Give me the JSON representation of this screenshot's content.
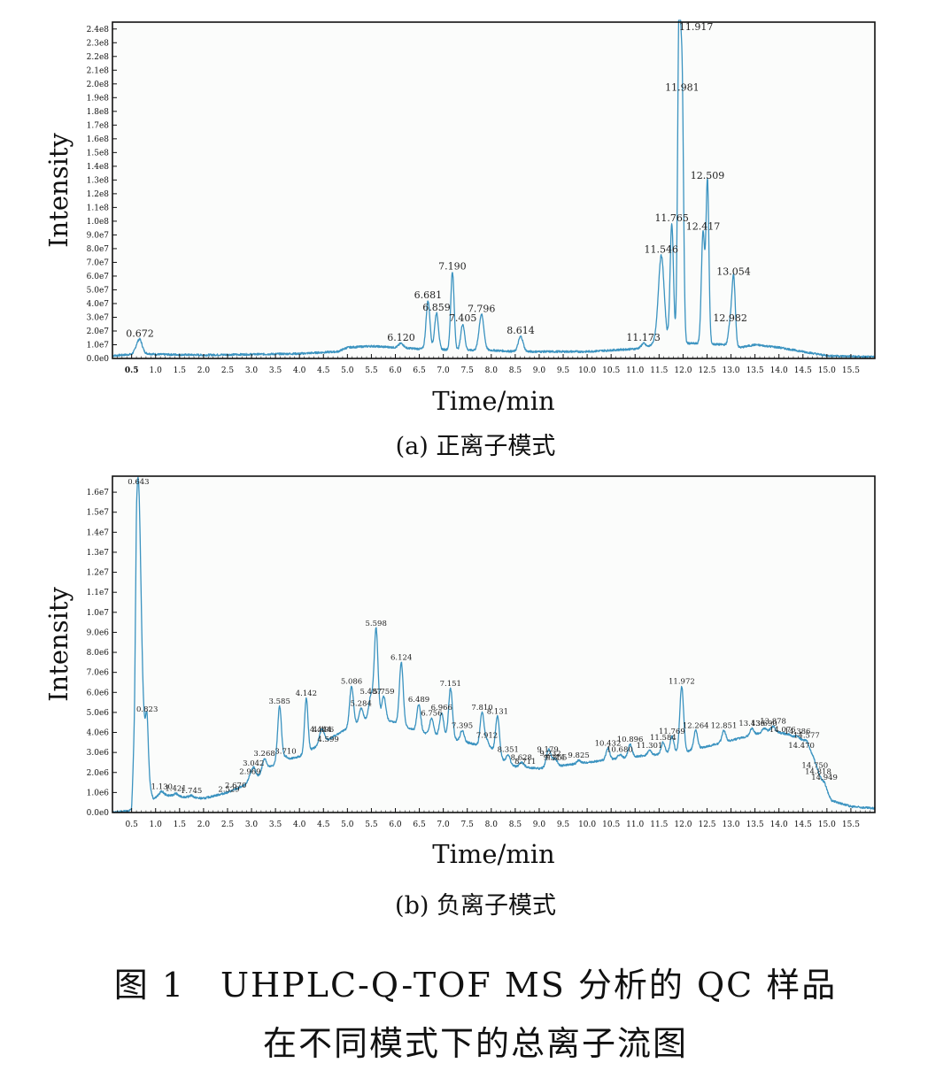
{
  "chart_data": [
    {
      "type": "line",
      "xlabel": "Time/min",
      "ylabel": "Intensity",
      "xlim": [
        0.1,
        16.0
      ],
      "ylim": [
        0,
        245000000
      ],
      "x_ticks": [
        0.5,
        1.0,
        1.5,
        2.0,
        2.5,
        3.0,
        3.5,
        4.0,
        4.5,
        5.0,
        5.5,
        6.0,
        6.5,
        7.0,
        7.5,
        8.0,
        8.5,
        9.0,
        9.5,
        10.0,
        10.5,
        11.0,
        11.5,
        12.0,
        12.5,
        13.0,
        13.5,
        14.0,
        14.5,
        15.0,
        15.5
      ],
      "x_tick_labels": [
        "0.5",
        "1.0",
        "1.5",
        "2.0",
        "2.5",
        "3.0",
        "3.5",
        "4.0",
        "4.5",
        "5.0",
        "5.5",
        "6.0",
        "6.5",
        "7.0",
        "7.5",
        "8.0",
        "8.5",
        "9.0",
        "9.5",
        "10.0",
        "10.5",
        "11.0",
        "11.5",
        "12.0",
        "12.5",
        "13.0",
        "13.5",
        "14.0",
        "14.5",
        "15.0",
        "15.5"
      ],
      "y_ticks": [
        0,
        10000000,
        20000000,
        30000000,
        40000000,
        50000000,
        60000000,
        70000000,
        80000000,
        90000000,
        100000000,
        110000000,
        120000000,
        130000000,
        140000000,
        150000000,
        160000000,
        170000000,
        180000000,
        190000000,
        200000000,
        210000000,
        220000000,
        230000000,
        240000000
      ],
      "y_tick_labels": [
        "0.0e0",
        "1.0e7",
        "2.0e7",
        "3.0e7",
        "4.0e7",
        "5.0e7",
        "6.0e7",
        "7.0e7",
        "8.0e7",
        "9.0e7",
        "1.0e8",
        "1.1e8",
        "1.2e8",
        "1.3e8",
        "1.4e8",
        "1.5e8",
        "1.6e8",
        "1.7e8",
        "1.8e8",
        "1.9e8",
        "2.0e8",
        "2.1e8",
        "2.2e8",
        "2.3e8",
        "2.4e8"
      ],
      "baseline_points": [
        [
          0.1,
          2000000
        ],
        [
          0.5,
          3000000
        ],
        [
          0.6,
          7000000
        ],
        [
          0.7,
          4000000
        ],
        [
          1.0,
          3000000
        ],
        [
          2.0,
          2500000
        ],
        [
          3.0,
          3000000
        ],
        [
          4.0,
          3500000
        ],
        [
          4.8,
          5000000
        ],
        [
          5.0,
          8000000
        ],
        [
          5.5,
          9000000
        ],
        [
          6.0,
          8000000
        ],
        [
          6.5,
          7000000
        ],
        [
          7.5,
          6000000
        ],
        [
          8.0,
          6000000
        ],
        [
          8.5,
          5000000
        ],
        [
          9.0,
          5000000
        ],
        [
          10.0,
          5000000
        ],
        [
          10.5,
          6000000
        ],
        [
          11.0,
          7000000
        ],
        [
          11.3,
          9000000
        ],
        [
          11.4,
          12000000
        ],
        [
          12.9,
          10000000
        ],
        [
          13.2,
          8000000
        ],
        [
          13.5,
          10000000
        ],
        [
          14.0,
          8000000
        ],
        [
          14.5,
          5000000
        ],
        [
          15.0,
          2000000
        ],
        [
          16.0,
          1000000
        ]
      ],
      "peaks": [
        {
          "x": 0.672,
          "y": 14000000,
          "w": 0.05,
          "label": "0.672"
        },
        {
          "x": 6.12,
          "y": 11000000,
          "w": 0.05,
          "label": "6.120"
        },
        {
          "x": 6.681,
          "y": 42000000,
          "w": 0.04,
          "label": "6.681"
        },
        {
          "x": 6.859,
          "y": 33000000,
          "w": 0.04,
          "label": "6.859"
        },
        {
          "x": 7.19,
          "y": 63000000,
          "w": 0.035,
          "label": "7.190"
        },
        {
          "x": 7.405,
          "y": 25000000,
          "w": 0.04,
          "label": "7.405"
        },
        {
          "x": 7.796,
          "y": 32000000,
          "w": 0.05,
          "label": "7.796"
        },
        {
          "x": 8.614,
          "y": 16000000,
          "w": 0.05,
          "label": "8.614"
        },
        {
          "x": 11.173,
          "y": 11000000,
          "w": 0.04,
          "label": "11.173"
        },
        {
          "x": 11.546,
          "y": 75000000,
          "w": 0.06,
          "label": "11.546"
        },
        {
          "x": 11.765,
          "y": 98000000,
          "w": 0.035,
          "label": "11.765"
        },
        {
          "x": 11.917,
          "y": 248000000,
          "w": 0.03,
          "label": "11.917"
        },
        {
          "x": 11.981,
          "y": 193000000,
          "w": 0.03,
          "label": "11.981"
        },
        {
          "x": 12.417,
          "y": 92000000,
          "w": 0.035,
          "label": "12.417"
        },
        {
          "x": 12.509,
          "y": 129000000,
          "w": 0.03,
          "label": "12.509"
        },
        {
          "x": 12.982,
          "y": 25000000,
          "w": 0.035,
          "label": "12.982"
        },
        {
          "x": 13.054,
          "y": 59000000,
          "w": 0.035,
          "label": "13.054"
        }
      ]
    },
    {
      "type": "line",
      "xlabel": "Time/min",
      "ylabel": "Intensity",
      "xlim": [
        0.1,
        16.0
      ],
      "ylim": [
        0,
        16800000
      ],
      "x_ticks": [
        0.5,
        1.0,
        1.5,
        2.0,
        2.5,
        3.0,
        3.5,
        4.0,
        4.5,
        5.0,
        5.5,
        6.0,
        6.5,
        7.0,
        7.5,
        8.0,
        8.5,
        9.0,
        9.5,
        10.0,
        10.5,
        11.0,
        11.5,
        12.0,
        12.5,
        13.0,
        13.5,
        14.0,
        14.5,
        15.0,
        15.5
      ],
      "x_tick_labels": [
        "0.5",
        "1.0",
        "1.5",
        "2.0",
        "2.5",
        "3.0",
        "3.5",
        "4.0",
        "4.5",
        "5.0",
        "5.5",
        "6.0",
        "6.5",
        "7.0",
        "7.5",
        "8.0",
        "8.5",
        "9.0",
        "9.5",
        "10.0",
        "10.5",
        "11.0",
        "11.5",
        "12.0",
        "12.5",
        "13.0",
        "13.5",
        "14.0",
        "14.5",
        "15.0",
        "15.5"
      ],
      "y_ticks": [
        0,
        1000000,
        2000000,
        3000000,
        4000000,
        5000000,
        6000000,
        7000000,
        8000000,
        9000000,
        10000000,
        11000000,
        12000000,
        13000000,
        14000000,
        15000000,
        16000000
      ],
      "y_tick_labels": [
        "0.0e0",
        "1.0e6",
        "2.0e6",
        "3.0e6",
        "4.0e6",
        "5.0e6",
        "6.0e6",
        "7.0e6",
        "8.0e6",
        "9.0e6",
        "1.0e7",
        "1.1e7",
        "1.2e7",
        "1.3e7",
        "1.4e7",
        "1.5e7",
        "1.6e7"
      ],
      "baseline_points": [
        [
          0.1,
          0
        ],
        [
          0.5,
          100000
        ],
        [
          0.56,
          3000000
        ],
        [
          0.6,
          9000000
        ],
        [
          0.85,
          1500000
        ],
        [
          0.95,
          700000
        ],
        [
          1.1,
          900000
        ],
        [
          1.5,
          800000
        ],
        [
          2.0,
          700000
        ],
        [
          2.5,
          1000000
        ],
        [
          3.0,
          1500000
        ],
        [
          3.3,
          2200000
        ],
        [
          3.7,
          2600000
        ],
        [
          4.0,
          2800000
        ],
        [
          4.5,
          3500000
        ],
        [
          5.0,
          4200000
        ],
        [
          5.5,
          4800000
        ],
        [
          6.0,
          4500000
        ],
        [
          6.5,
          4000000
        ],
        [
          7.0,
          3800000
        ],
        [
          7.5,
          3500000
        ],
        [
          8.0,
          3200000
        ],
        [
          8.3,
          2500000
        ],
        [
          8.5,
          2300000
        ],
        [
          9.0,
          2200000
        ],
        [
          10.0,
          2500000
        ],
        [
          11.0,
          2800000
        ],
        [
          12.0,
          3000000
        ],
        [
          12.5,
          3300000
        ],
        [
          13.0,
          3600000
        ],
        [
          13.5,
          3900000
        ],
        [
          13.8,
          4100000
        ],
        [
          14.2,
          3900000
        ],
        [
          14.5,
          3600000
        ],
        [
          14.7,
          2900000
        ],
        [
          14.9,
          1500000
        ],
        [
          15.1,
          600000
        ],
        [
          15.5,
          300000
        ],
        [
          16.0,
          200000
        ]
      ],
      "peaks": [
        {
          "x": 0.643,
          "y": 16600000,
          "w": 0.05,
          "label": "0.643"
        },
        {
          "x": 0.823,
          "y": 4900000,
          "w": 0.03,
          "label": "0.823"
        },
        {
          "x": 1.13,
          "y": 1050000,
          "w": 0.04,
          "label": "1.130"
        },
        {
          "x": 1.421,
          "y": 950000,
          "w": 0.04,
          "label": "1.421"
        },
        {
          "x": 1.745,
          "y": 850000,
          "w": 0.04,
          "label": "1.745"
        },
        {
          "x": 2.529,
          "y": 900000,
          "w": 0.04,
          "label": "2.529"
        },
        {
          "x": 2.67,
          "y": 1100000,
          "w": 0.04,
          "label": "2.670"
        },
        {
          "x": 2.969,
          "y": 1800000,
          "w": 0.04,
          "label": "2.969"
        },
        {
          "x": 3.042,
          "y": 2200000,
          "w": 0.04,
          "label": "3.042"
        },
        {
          "x": 3.268,
          "y": 2700000,
          "w": 0.04,
          "label": "3.268"
        },
        {
          "x": 3.585,
          "y": 5300000,
          "w": 0.04,
          "label": "3.585"
        },
        {
          "x": 3.71,
          "y": 2800000,
          "w": 0.04,
          "label": "3.710"
        },
        {
          "x": 4.142,
          "y": 5700000,
          "w": 0.035,
          "label": "4.142"
        },
        {
          "x": 4.444,
          "y": 3900000,
          "w": 0.04,
          "label": "4.444"
        },
        {
          "x": 4.599,
          "y": 3400000,
          "w": 0.04,
          "label": "4.599"
        },
        {
          "x": 4.496,
          "y": 3900000,
          "w": 0.04,
          "label": "4.496"
        },
        {
          "x": 5.086,
          "y": 6300000,
          "w": 0.04,
          "label": "5.086"
        },
        {
          "x": 5.284,
          "y": 5200000,
          "w": 0.04,
          "label": "5.284"
        },
        {
          "x": 5.487,
          "y": 5800000,
          "w": 0.04,
          "label": "5.487"
        },
        {
          "x": 5.598,
          "y": 9200000,
          "w": 0.04,
          "label": "5.598"
        },
        {
          "x": 5.759,
          "y": 5800000,
          "w": 0.04,
          "label": "5.759"
        },
        {
          "x": 6.124,
          "y": 7500000,
          "w": 0.04,
          "label": "6.124"
        },
        {
          "x": 6.489,
          "y": 5400000,
          "w": 0.04,
          "label": "6.489"
        },
        {
          "x": 6.756,
          "y": 4700000,
          "w": 0.04,
          "label": "6.756"
        },
        {
          "x": 6.966,
          "y": 5000000,
          "w": 0.04,
          "label": "6.966"
        },
        {
          "x": 7.151,
          "y": 6200000,
          "w": 0.04,
          "label": "7.151"
        },
        {
          "x": 7.395,
          "y": 4100000,
          "w": 0.04,
          "label": "7.395"
        },
        {
          "x": 7.912,
          "y": 3600000,
          "w": 0.04,
          "label": "7.912"
        },
        {
          "x": 7.81,
          "y": 5000000,
          "w": 0.04,
          "label": "7.810"
        },
        {
          "x": 8.131,
          "y": 4800000,
          "w": 0.04,
          "label": "8.131"
        },
        {
          "x": 8.351,
          "y": 2900000,
          "w": 0.04,
          "label": "8.351"
        },
        {
          "x": 8.628,
          "y": 2500000,
          "w": 0.04,
          "label": "8.628"
        },
        {
          "x": 8.711,
          "y": 2300000,
          "w": 0.04,
          "label": "8.711"
        },
        {
          "x": 9.232,
          "y": 2700000,
          "w": 0.04,
          "label": "9.232"
        },
        {
          "x": 9.179,
          "y": 2900000,
          "w": 0.04,
          "label": "9.179"
        },
        {
          "x": 9.314,
          "y": 2500000,
          "w": 0.04,
          "label": "9.314"
        },
        {
          "x": 9.355,
          "y": 2500000,
          "w": 0.04,
          "label": "9.355"
        },
        {
          "x": 9.825,
          "y": 2600000,
          "w": 0.04,
          "label": "9.825"
        },
        {
          "x": 10.432,
          "y": 3200000,
          "w": 0.04,
          "label": "10.432"
        },
        {
          "x": 10.68,
          "y": 2900000,
          "w": 0.04,
          "label": "10.680"
        },
        {
          "x": 10.896,
          "y": 3400000,
          "w": 0.04,
          "label": "10.896"
        },
        {
          "x": 11.301,
          "y": 3100000,
          "w": 0.04,
          "label": "11.301"
        },
        {
          "x": 11.584,
          "y": 3500000,
          "w": 0.04,
          "label": "11.584"
        },
        {
          "x": 11.769,
          "y": 3800000,
          "w": 0.04,
          "label": "11.769"
        },
        {
          "x": 11.972,
          "y": 6300000,
          "w": 0.04,
          "label": "11.972"
        },
        {
          "x": 12.264,
          "y": 4100000,
          "w": 0.04,
          "label": "12.264"
        },
        {
          "x": 12.851,
          "y": 4100000,
          "w": 0.04,
          "label": "12.851"
        },
        {
          "x": 13.436,
          "y": 4200000,
          "w": 0.04,
          "label": "13.436"
        },
        {
          "x": 13.69,
          "y": 4200000,
          "w": 0.04,
          "label": "13.690"
        },
        {
          "x": 13.878,
          "y": 4300000,
          "w": 0.04,
          "label": "13.878"
        },
        {
          "x": 14.076,
          "y": 3900000,
          "w": 0.04,
          "label": "14.076"
        },
        {
          "x": 14.386,
          "y": 3800000,
          "w": 0.04,
          "label": "14.386"
        },
        {
          "x": 14.577,
          "y": 3600000,
          "w": 0.04,
          "label": "14.577"
        },
        {
          "x": 14.47,
          "y": 3100000,
          "w": 0.04,
          "label": "14.470"
        },
        {
          "x": 14.75,
          "y": 2100000,
          "w": 0.04,
          "label": "14.750"
        },
        {
          "x": 14.818,
          "y": 1800000,
          "w": 0.04,
          "label": "14.818"
        },
        {
          "x": 14.949,
          "y": 1500000,
          "w": 0.04,
          "label": "14.949"
        }
      ]
    }
  ],
  "labels": [
    {
      "xlabel": "Time/min",
      "ylabel": "Intensity",
      "caption": "(a) 正离子模式"
    },
    {
      "xlabel": "Time/min",
      "ylabel": "Intensity",
      "caption": "(b) 负离子模式"
    }
  ],
  "figure": {
    "caption_line1": "图 1　UHPLC-Q-TOF MS 分析的 QC 样品",
    "caption_line2": "在不同模式下的总离子流图"
  },
  "colors": {
    "trace": "#3b93c0",
    "trace_dark": "#1f5f8a",
    "plot_bg": "#fbfcfb",
    "axis": "#111111"
  }
}
